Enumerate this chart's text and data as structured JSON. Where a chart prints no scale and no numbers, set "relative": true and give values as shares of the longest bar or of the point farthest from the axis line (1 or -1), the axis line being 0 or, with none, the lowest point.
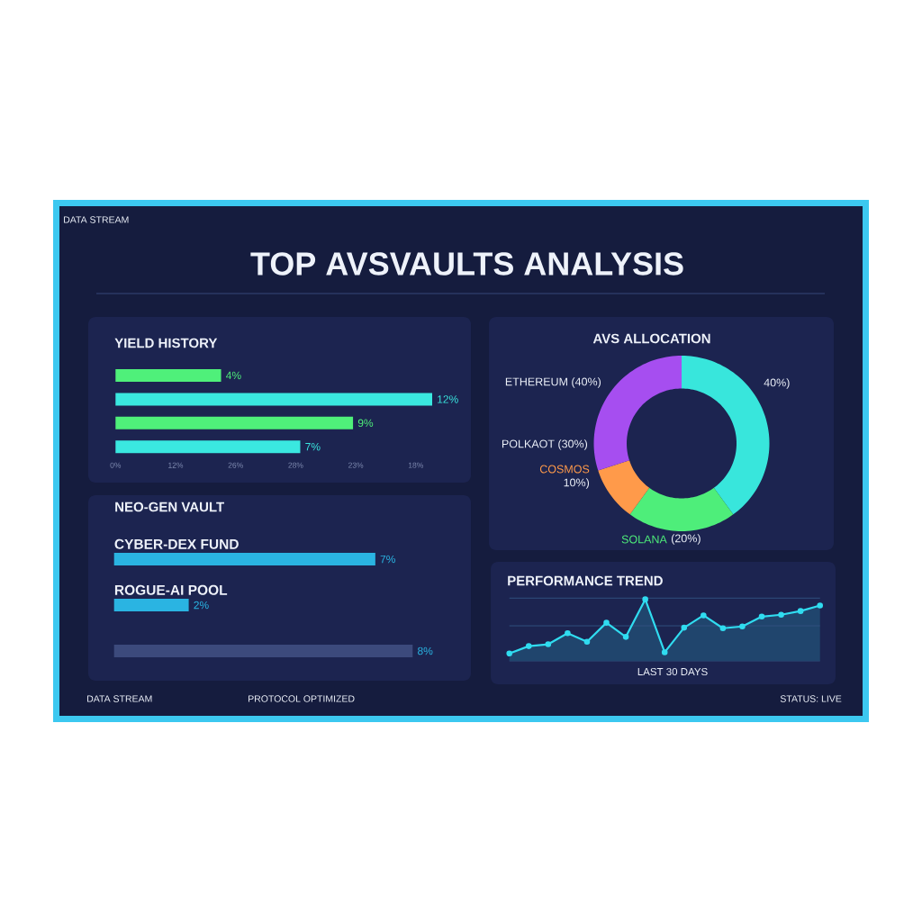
{
  "chart_data": [
    {
      "type": "other",
      "title": "TOP AVSVAULTS ANALYSIS",
      "annotations": [
        "DATA STREAM",
        "DATA STREAM",
        "PROTOCOL OPTIMIZED",
        "STATUS: LIVE"
      ]
    },
    {
      "type": "bar",
      "orientation": "horizontal",
      "title": "YIELD HISTORY",
      "categories": [
        null,
        null,
        null,
        null
      ],
      "values": [
        4,
        12,
        9,
        7
      ],
      "colors": [
        "#4ff07a",
        "#3ae8e0",
        "#4ff07a",
        "#3ae8e0"
      ],
      "value_labels": [
        "4%",
        "12%",
        "9%",
        "7%"
      ],
      "annotations": [
        "0%",
        "12%",
        "26%",
        "28%",
        "23%",
        "18%"
      ]
    },
    {
      "type": "donut",
      "title": "AVS ALLOCATION",
      "categories": [
        null,
        "SOLANA",
        "COSMOS",
        "POLKAOT (30%)"
      ],
      "values": [
        40,
        20,
        10,
        30
      ],
      "colors": [
        "#38e6dc",
        "#4eee7a",
        "#ff9a4a",
        "#a64ef0"
      ],
      "value_labels": [
        "40%)",
        "(20%)",
        "10%)",
        null
      ],
      "annotations": [
        "ETHEREUM (40%)"
      ]
    },
    {
      "type": "bar",
      "orientation": "horizontal",
      "title": "NEO-GEN VAULT",
      "categories": [
        "CYBER-DEX FUND",
        "ROGUE-AI POOL",
        null
      ],
      "values": [
        7,
        2,
        8
      ],
      "colors": [
        "#2ab4e2",
        "#2ab4e2",
        "#3c4a7c"
      ],
      "value_labels": [
        "7%",
        "2%",
        "8%"
      ]
    },
    {
      "type": "area",
      "relative": true,
      "title": "PERFORMANCE TREND",
      "xlabel": "LAST 30 DAYS",
      "categories": [
        null,
        null,
        null,
        null,
        null,
        null,
        null,
        null,
        null,
        null,
        null,
        null,
        null,
        null,
        null,
        null,
        null
      ],
      "series": [
        {
          "color": "#30dcf0",
          "values": [
            0.12,
            0.24,
            0.27,
            0.45,
            0.31,
            0.62,
            0.39,
            1.0,
            0.14,
            0.54,
            0.74,
            0.53,
            0.56,
            0.72,
            0.75,
            0.81,
            0.9
          ]
        }
      ],
      "marker": "circle",
      "ref_lines": [
        {
          "axis": "y",
          "value": 0.57,
          "color": "#30507e"
        }
      ]
    }
  ]
}
